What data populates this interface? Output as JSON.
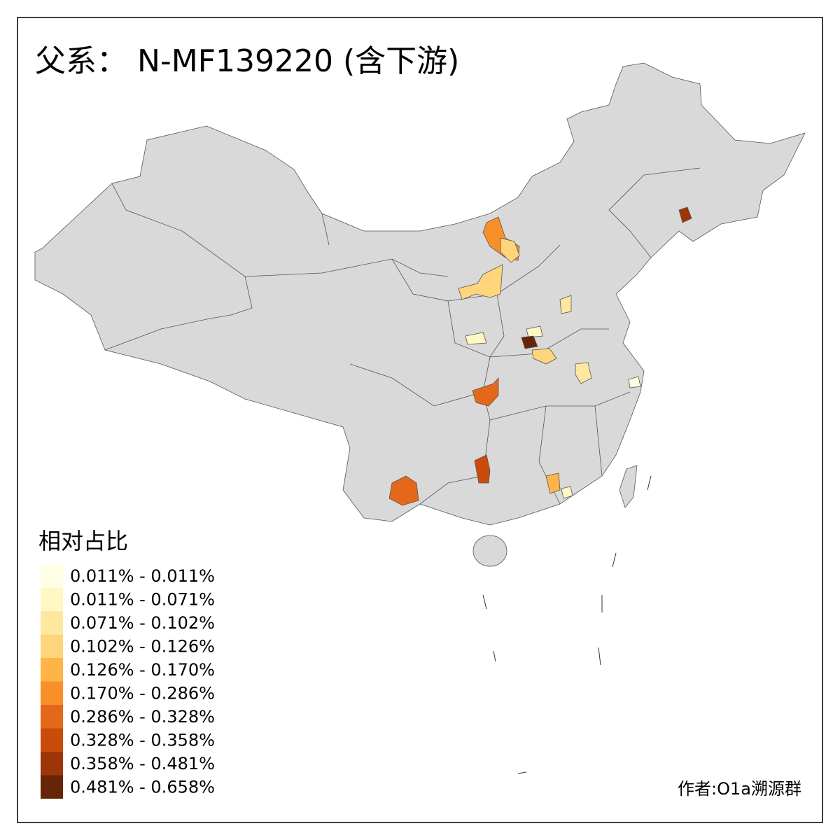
{
  "title": "父系： N-MF139220 (含下游)",
  "legend": {
    "title": "相对占比",
    "items": [
      {
        "label": "0.011% - 0.011%",
        "color": "#ffffe5"
      },
      {
        "label": "0.011% - 0.071%",
        "color": "#fff7c4"
      },
      {
        "label": "0.071% - 0.102%",
        "color": "#fee8a0"
      },
      {
        "label": "0.102% - 0.126%",
        "color": "#fed57a"
      },
      {
        "label": "0.126% - 0.170%",
        "color": "#feb447"
      },
      {
        "label": "0.170% - 0.286%",
        "color": "#f98f28"
      },
      {
        "label": "0.286% - 0.328%",
        "color": "#e5681a"
      },
      {
        "label": "0.328% - 0.358%",
        "color": "#c94c0a"
      },
      {
        "label": "0.358% - 0.481%",
        "color": "#9e3507"
      },
      {
        "label": "0.481% - 0.658%",
        "color": "#662506"
      }
    ]
  },
  "author": "作者:O1a溯源群"
}
